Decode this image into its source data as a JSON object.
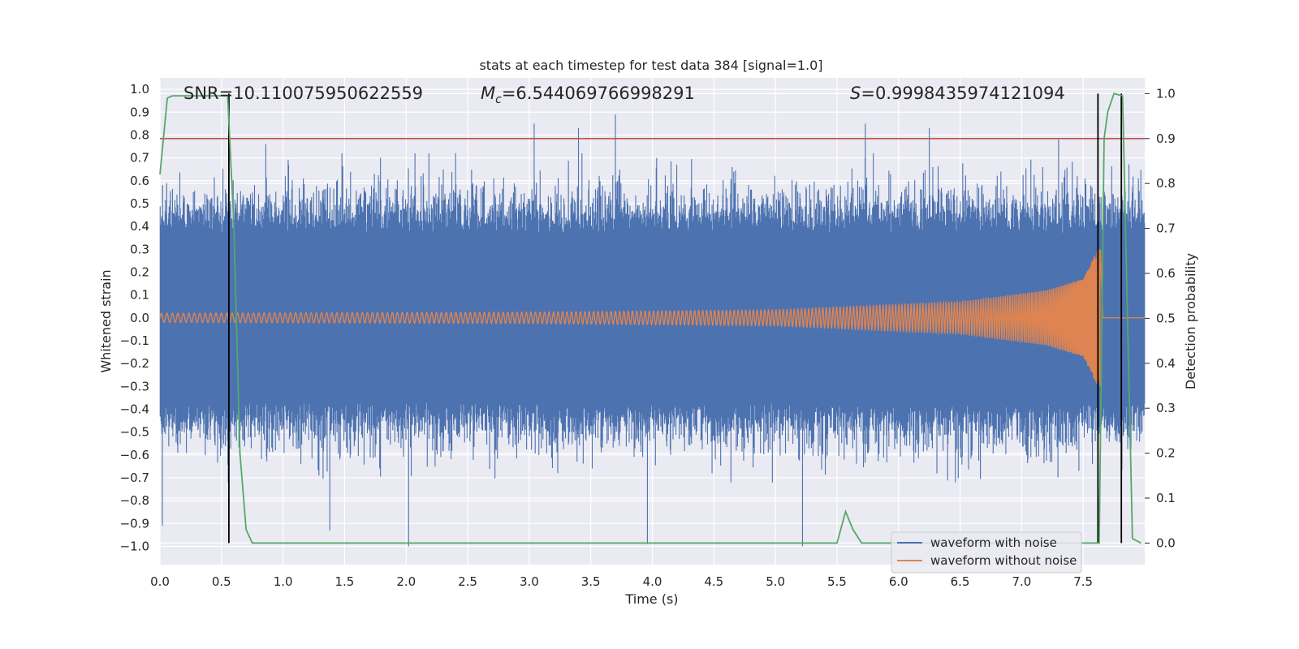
{
  "chart_data": {
    "type": "line",
    "title": "stats at each timestep for test data 384 [signal=1.0]",
    "xlabel": "Time (s)",
    "ylabel_left": "Whitened strain",
    "ylabel_right": "Detection probability",
    "xlim": [
      0.0,
      8.0
    ],
    "ylim_left": [
      -1.08,
      1.05
    ],
    "ylim_right": [
      -0.048,
      1.035
    ],
    "x_ticks": [
      "0.0",
      "0.5",
      "1.0",
      "1.5",
      "2.0",
      "2.5",
      "3.0",
      "3.5",
      "4.0",
      "4.5",
      "5.0",
      "5.5",
      "6.0",
      "6.5",
      "7.0",
      "7.5"
    ],
    "y_left_ticks": [
      "1.0",
      "0.9",
      "0.8",
      "0.7",
      "0.6",
      "0.5",
      "0.4",
      "0.3",
      "0.2",
      "0.1",
      "0.0",
      "−0.1",
      "−0.2",
      "−0.3",
      "−0.4",
      "−0.5",
      "−0.6",
      "−0.7",
      "−0.8",
      "−0.9",
      "−1.0"
    ],
    "y_right_ticks": [
      "1.0",
      "0.9",
      "0.8",
      "0.7",
      "0.6",
      "0.5",
      "0.4",
      "0.3",
      "0.2",
      "0.1",
      "0.0"
    ],
    "annotations": {
      "snr": "SNR=10.110075950622559",
      "mc_symbol": "M",
      "mc_subscript": "c",
      "mc_value": "=6.544069766998291",
      "s_symbol": "S",
      "s_value": "=0.9998435974121094"
    },
    "threshold": {
      "value": 0.9,
      "axis": "right"
    },
    "vertical_markers_s": [
      0.56,
      7.62,
      7.81
    ],
    "series": [
      {
        "name": "waveform with noise",
        "axis": "left",
        "noise_band_approx": [
          -0.4,
          0.4
        ],
        "notable_peaks": [
          {
            "t": 0.02,
            "y": -0.91
          },
          {
            "t": 0.56,
            "y": -0.68
          },
          {
            "t": 0.86,
            "y": 0.76
          },
          {
            "t": 1.38,
            "y": -0.93
          },
          {
            "t": 2.02,
            "y": -1.0
          },
          {
            "t": 3.04,
            "y": 0.85
          },
          {
            "t": 3.4,
            "y": 0.83
          },
          {
            "t": 3.7,
            "y": 0.89
          },
          {
            "t": 3.96,
            "y": -0.99
          },
          {
            "t": 5.22,
            "y": -1.0
          },
          {
            "t": 5.73,
            "y": 0.85
          },
          {
            "t": 6.25,
            "y": 0.83
          },
          {
            "t": 7.3,
            "y": 0.78
          },
          {
            "t": 7.62,
            "y": 0.8
          }
        ]
      },
      {
        "name": "waveform without noise",
        "axis": "left",
        "chirp_envelope": [
          {
            "t": 0.0,
            "amp": 0.02
          },
          {
            "t": 3.0,
            "amp": 0.025
          },
          {
            "t": 5.0,
            "amp": 0.035
          },
          {
            "t": 6.5,
            "amp": 0.07
          },
          {
            "t": 7.2,
            "amp": 0.12
          },
          {
            "t": 7.5,
            "amp": 0.17
          },
          {
            "t": 7.62,
            "amp": 0.3
          }
        ],
        "merger_time_s": 7.64
      },
      {
        "name": "detection probability",
        "axis": "right",
        "x": [
          0.0,
          0.06,
          0.1,
          0.2,
          0.4,
          0.55,
          0.6,
          0.65,
          0.7,
          0.75,
          1.0,
          3.0,
          5.0,
          5.5,
          5.57,
          5.63,
          5.7,
          7.0,
          7.63,
          7.67,
          7.7,
          7.75,
          7.82,
          7.9,
          7.97
        ],
        "y": [
          0.82,
          0.99,
          0.995,
          0.995,
          0.995,
          0.995,
          0.71,
          0.2,
          0.03,
          0.0,
          0.0,
          0.0,
          0.0,
          0.0,
          0.07,
          0.03,
          0.0,
          0.0,
          0.0,
          0.9,
          0.96,
          1.0,
          0.995,
          0.01,
          0.0
        ]
      }
    ],
    "legend": {
      "position": "lower-right",
      "entries": [
        {
          "label": "waveform with noise",
          "color": "#4c72b0"
        },
        {
          "label": "waveform without noise",
          "color": "#dd8452"
        }
      ]
    },
    "colors": {
      "noise": "#4c72b0",
      "clean": "#dd8452",
      "probability": "#55a868",
      "threshold": "#c44e52",
      "markers": "#000000",
      "plot_bg": "#eaeaf2",
      "grid": "#ffffff"
    }
  }
}
